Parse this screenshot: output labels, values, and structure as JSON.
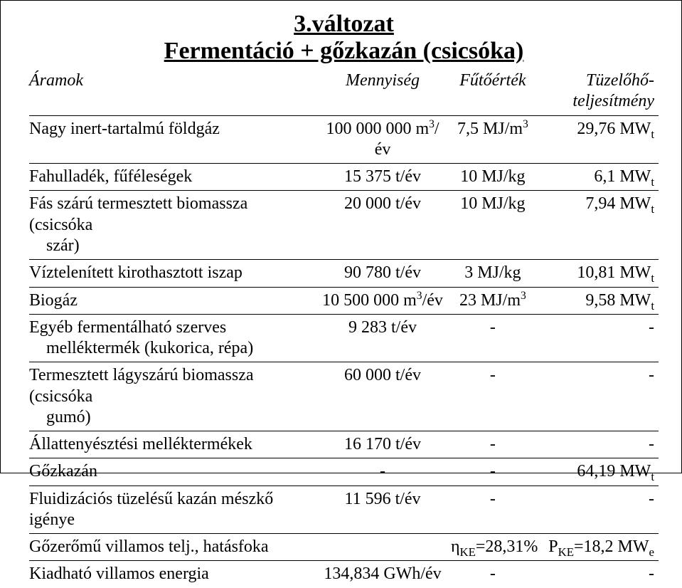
{
  "title_l1": "3.változat",
  "title_l2": "Fermentáció + gőzkazán (csicsóka)",
  "head": {
    "c0": "Áramok",
    "c1": "Mennyiség",
    "c2": "Fűtőérték",
    "c3": "Tüzelőhő-teljesítmény"
  },
  "r1": {
    "n": "Nagy inert-tartalmú földgáz",
    "q": "100 000 000 m",
    "qexp": "3",
    "qunit": "/év",
    "h": "7,5 MJ/m",
    "hexp": "3",
    "p": "29,76 MW",
    "psub": "t"
  },
  "r2": {
    "n": "Fahulladék, fűféleségek",
    "q": "15 375 t/év",
    "h": "10 MJ/kg",
    "p": "6,1 MW",
    "psub": "t"
  },
  "r3": {
    "n1": "Fás szárú termesztett biomassza (csicsóka",
    "n2": "szár)",
    "q": "20 000 t/év",
    "h": "10 MJ/kg",
    "p": "7,94 MW",
    "psub": "t"
  },
  "r4": {
    "n": "Víztelenített kirothasztott iszap",
    "q": "90 780 t/év",
    "h": "3 MJ/kg",
    "p": "10,81 MW",
    "psub": "t"
  },
  "r5": {
    "n": "Biogáz",
    "q": "10 500 000 m",
    "qexp": "3",
    "qunit": "/év",
    "h": "23 MJ/m",
    "hexp": "3",
    "p": "9,58 MW",
    "psub": "t"
  },
  "r6": {
    "n1": "Egyéb fermentálható szerves",
    "n2": "melléktermék (kukorica, répa)",
    "q": "9 283 t/év",
    "h": "-",
    "p": "-"
  },
  "r7": {
    "n1": "Termesztett lágyszárú biomassza (csicsóka",
    "n2": "gumó)",
    "q": "60 000 t/év",
    "h": "-",
    "p": "-"
  },
  "r8": {
    "n": "Állattenyésztési melléktermékek",
    "q": "16 170 t/év",
    "h": "-",
    "p": "-"
  },
  "r9": {
    "n": "Gőzkazán",
    "q": "-",
    "h": "-",
    "p": "64,19 MW",
    "psub": "t"
  },
  "r10": {
    "n": "Fluidizációs tüzelésű kazán mészkő igénye",
    "q": "11 596 t/év",
    "h": "-",
    "p": "-"
  },
  "r11": {
    "n": "Gőzerőmű villamos telj., hatásfoka",
    "h_pre": "η",
    "h_sub": "KE",
    "h_post": "=28,31%",
    "p_pre": "P",
    "p_sub": "KE",
    "p_post": "=18,2 MW",
    "p_sub2": "e"
  },
  "r12": {
    "n": "Kiadható villamos energia",
    "q": "134,834 GWh/év",
    "h": "-",
    "p": "-"
  },
  "style": {
    "bg": "#ffffff",
    "text": "#000000",
    "border": "#000000",
    "title_fontsize": 34,
    "body_fontsize": 24,
    "font_family": "Garamond"
  }
}
